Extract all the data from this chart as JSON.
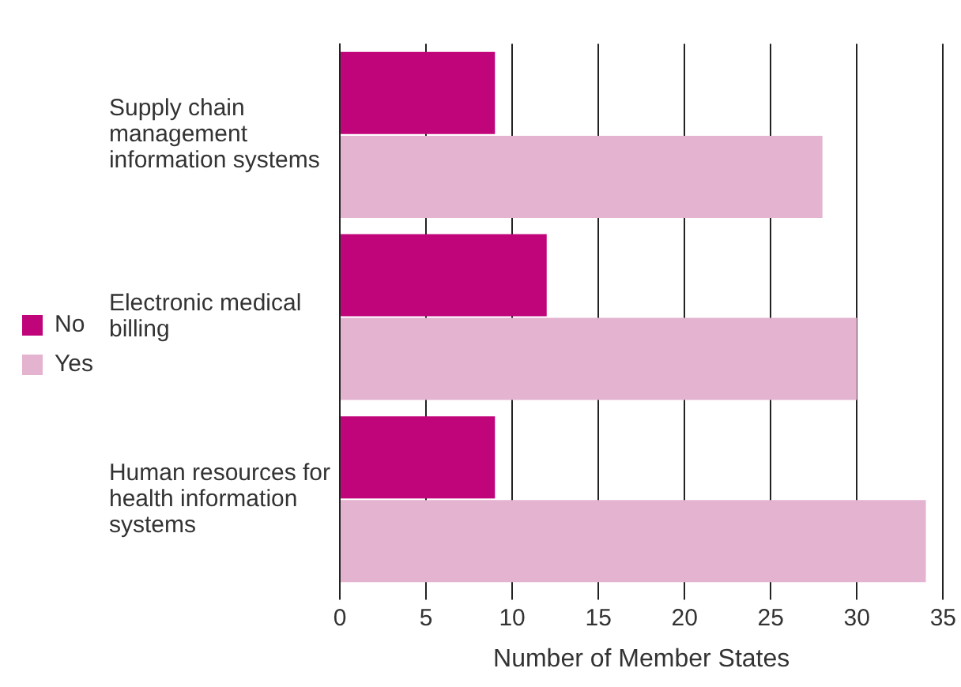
{
  "chart_data": {
    "type": "bar",
    "orientation": "horizontal",
    "xlabel": "Number of Member States",
    "categories": [
      "Supply chain management information systems",
      "Electronic medical billing",
      "Human resources for health information systems"
    ],
    "series": [
      {
        "name": "No",
        "color": "#c0057a",
        "values": [
          9,
          12,
          9
        ]
      },
      {
        "name": "Yes",
        "color": "#e4b3cf",
        "values": [
          28,
          30,
          34
        ]
      }
    ],
    "xlim": [
      0,
      35
    ],
    "xticks": [
      0,
      5,
      10,
      15,
      20,
      25,
      30,
      35
    ],
    "grid": "x",
    "legend": "left"
  }
}
